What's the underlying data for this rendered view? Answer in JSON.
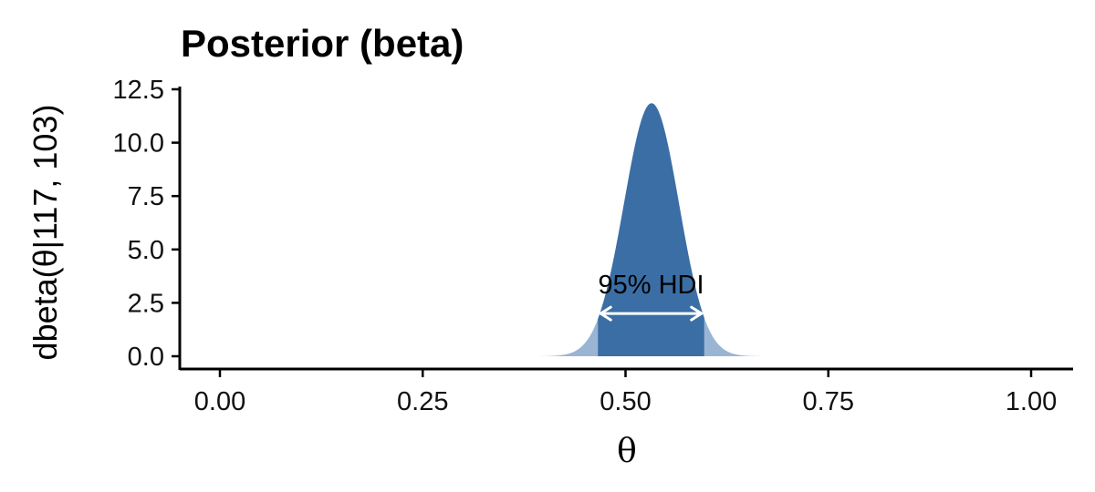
{
  "chart_data": {
    "type": "area",
    "title": "Posterior (beta)",
    "xlabel": "θ",
    "ylabel": "dbeta(θ|117, 103)",
    "distribution": {
      "family": "beta",
      "alpha": 117,
      "beta": 103
    },
    "xlim": [
      0,
      1
    ],
    "ylim": [
      0,
      12.5
    ],
    "x_ticks": [
      0,
      0.25,
      0.5,
      0.75,
      1
    ],
    "x_tick_labels": [
      "0.00",
      "0.25",
      "0.50",
      "0.75",
      "1.00"
    ],
    "y_ticks": [
      0,
      2.5,
      5,
      7.5,
      10,
      12.5
    ],
    "y_tick_labels": [
      "0.0",
      "2.5",
      "5.0",
      "7.5",
      "10.0",
      "12.5"
    ],
    "hdi": {
      "label": "95% HDI",
      "mass": 0.95,
      "lower": 0.466,
      "upper": 0.597
    },
    "grid": false,
    "colors": {
      "hdi_fill": "#3a6ea5",
      "tail_fill": "#9ab5d4",
      "arrow": "#ffffff",
      "axis": "#000000"
    }
  }
}
